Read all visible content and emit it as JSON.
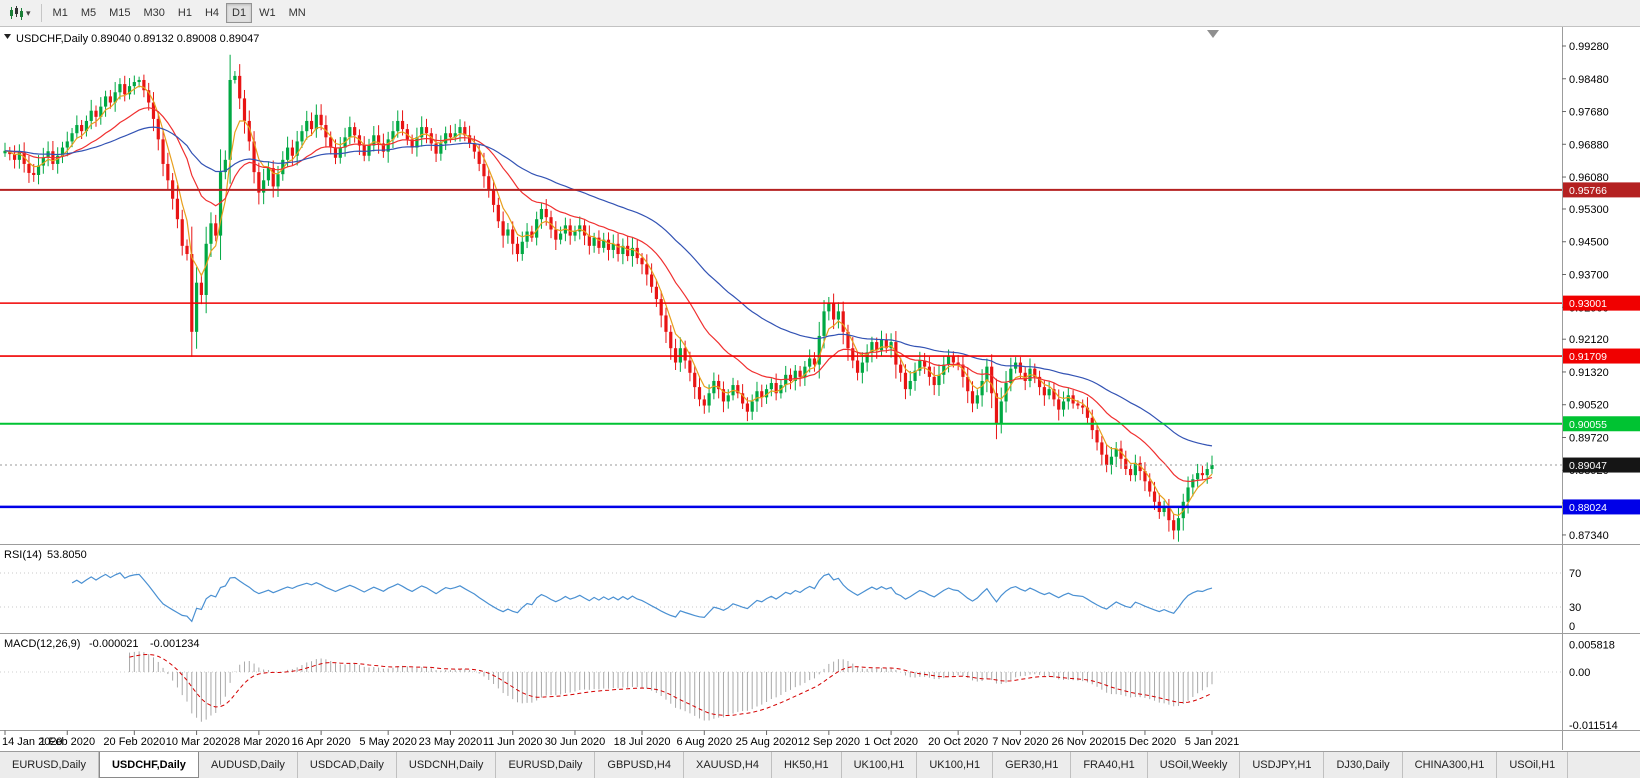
{
  "toolbar": {
    "chart_type_tooltip": "candlestick-chart",
    "timeframes": [
      {
        "label": "M1",
        "active": false
      },
      {
        "label": "M5",
        "active": false
      },
      {
        "label": "M15",
        "active": false
      },
      {
        "label": "M30",
        "active": false
      },
      {
        "label": "H1",
        "active": false
      },
      {
        "label": "H4",
        "active": false
      },
      {
        "label": "D1",
        "active": true
      },
      {
        "label": "W1",
        "active": false
      },
      {
        "label": "MN",
        "active": false
      }
    ]
  },
  "chart": {
    "symbol": "USDCHF",
    "period": "Daily",
    "title_line": "USDCHF,Daily  0.89040 0.89132 0.89008 0.89047",
    "ohlc": {
      "open": "0.89040",
      "high": "0.89132",
      "low": "0.89008",
      "close": "0.89047"
    }
  },
  "indicators": {
    "rsi": {
      "name": "RSI(14)",
      "value": "53.8050"
    },
    "macd": {
      "name": "MACD(12,26,9)",
      "value_main": "-0.000021",
      "value_signal": "-0.001234"
    }
  },
  "price_axis_labels": [
    {
      "label": "0.99280",
      "value": 0.9928
    },
    {
      "label": "0.98480",
      "value": 0.9848
    },
    {
      "label": "0.97680",
      "value": 0.9768
    },
    {
      "label": "0.96880",
      "value": 0.9688
    },
    {
      "label": "0.96080",
      "value": 0.9608
    },
    {
      "label": "0.95300",
      "value": 0.953
    },
    {
      "label": "0.94500",
      "value": 0.945
    },
    {
      "label": "0.93700",
      "value": 0.937
    },
    {
      "label": "0.92900",
      "value": 0.929
    },
    {
      "label": "0.92120",
      "value": 0.9212
    },
    {
      "label": "0.91320",
      "value": 0.9132
    },
    {
      "label": "0.90520",
      "value": 0.9052
    },
    {
      "label": "0.89720",
      "value": 0.8972
    },
    {
      "label": "0.88920",
      "value": 0.8892
    },
    {
      "label": "0.88120",
      "value": 0.8812
    },
    {
      "label": "0.87340",
      "value": 0.8734
    }
  ],
  "levels": [
    {
      "label": "0.95766",
      "price": 0.95766,
      "color": "#b42121",
      "width": 2
    },
    {
      "label": "0.93001",
      "price": 0.93001,
      "color": "#f00000",
      "width": 1.4
    },
    {
      "label": "0.91709",
      "price": 0.91709,
      "color": "#f00000",
      "width": 1.6
    },
    {
      "label": "0.90055",
      "price": 0.90055,
      "color": "#00c332",
      "width": 2
    },
    {
      "label": "0.88024",
      "price": 0.88024,
      "color": "#0000e8",
      "width": 2.5
    }
  ],
  "current_price": {
    "label": "0.89047",
    "price": 0.89047,
    "tag_color": "#151515"
  },
  "rsi_axis_labels": [
    {
      "label": "70",
      "value": 70
    },
    {
      "label": "30",
      "value": 30
    },
    {
      "label": "0",
      "value": 0
    }
  ],
  "macd_axis_labels": [
    {
      "label": "0.005818",
      "value": 0.005818
    },
    {
      "label": "0.00",
      "value": 0
    },
    {
      "label": "-0.011514",
      "value": -0.011514
    }
  ],
  "dates": [
    {
      "label": "14 Jan 2020",
      "index": 0
    },
    {
      "label": "1 Feb 2020",
      "index": 13
    },
    {
      "label": "20 Feb 2020",
      "index": 27
    },
    {
      "label": "10 Mar 2020",
      "index": 40
    },
    {
      "label": "28 Mar 2020",
      "index": 53
    },
    {
      "label": "16 Apr 2020",
      "index": 66
    },
    {
      "label": "5 May 2020",
      "index": 80
    },
    {
      "label": "23 May 2020",
      "index": 93
    },
    {
      "label": "11 Jun 2020",
      "index": 106
    },
    {
      "label": "30 Jun 2020",
      "index": 119
    },
    {
      "label": "18 Jul 2020",
      "index": 133
    },
    {
      "label": "6 Aug 2020",
      "index": 146
    },
    {
      "label": "25 Aug 2020",
      "index": 159
    },
    {
      "label": "12 Sep 2020",
      "index": 172
    },
    {
      "label": "1 Oct 2020",
      "index": 185
    },
    {
      "label": "20 Oct 2020",
      "index": 199
    },
    {
      "label": "7 Nov 2020",
      "index": 212
    },
    {
      "label": "26 Nov 2020",
      "index": 225
    },
    {
      "label": "15 Dec 2020",
      "index": 238
    },
    {
      "label": "5 Jan 2021",
      "index": 252
    }
  ],
  "tabs": [
    {
      "label": "EURUSD,Daily",
      "active": false
    },
    {
      "label": "USDCHF,Daily",
      "active": true
    },
    {
      "label": "AUDUSD,Daily",
      "active": false
    },
    {
      "label": "USDCAD,Daily",
      "active": false
    },
    {
      "label": "USDCNH,Daily",
      "active": false
    },
    {
      "label": "EURUSD,Daily",
      "active": false
    },
    {
      "label": "GBPUSD,H4",
      "active": false
    },
    {
      "label": "XAUUSD,H4",
      "active": false
    },
    {
      "label": "HK50,H1",
      "active": false
    },
    {
      "label": "UK100,H1",
      "active": false
    },
    {
      "label": "UK100,H1",
      "active": false
    },
    {
      "label": "GER30,H1",
      "active": false
    },
    {
      "label": "FRA40,H1",
      "active": false
    },
    {
      "label": "USOil,Weekly",
      "active": false
    },
    {
      "label": "USDJPY,H1",
      "active": false
    },
    {
      "label": "DJ30,Daily",
      "active": false
    },
    {
      "label": "CHINA300,H1",
      "active": false
    },
    {
      "label": "USOil,H1",
      "active": false
    }
  ],
  "chart_data": {
    "type": "candlestick",
    "symbol": "USDCHF",
    "timeframe": "Daily",
    "note": "open of each bar = close of previous bar; highs/lows estimated from chart",
    "price_range": {
      "axis_top": 0.9972,
      "axis_bottom": 0.8714
    },
    "closes": [
      0.9672,
      0.9664,
      0.965,
      0.9668,
      0.964,
      0.9618,
      0.9613,
      0.9636,
      0.9656,
      0.9671,
      0.964,
      0.966,
      0.968,
      0.9695,
      0.9715,
      0.9735,
      0.972,
      0.9745,
      0.977,
      0.9755,
      0.978,
      0.9805,
      0.979,
      0.9815,
      0.9835,
      0.981,
      0.983,
      0.984,
      0.9845,
      0.982,
      0.979,
      0.975,
      0.97,
      0.964,
      0.96,
      0.9555,
      0.9505,
      0.944,
      0.942,
      0.923,
      0.935,
      0.932,
      0.9445,
      0.9495,
      0.9465,
      0.962,
      0.965,
      0.9845,
      0.9855,
      0.98,
      0.9745,
      0.9695,
      0.962,
      0.957,
      0.96,
      0.963,
      0.9585,
      0.9615,
      0.965,
      0.968,
      0.966,
      0.9695,
      0.972,
      0.9745,
      0.9725,
      0.976,
      0.9735,
      0.9705,
      0.968,
      0.9655,
      0.968,
      0.9705,
      0.973,
      0.971,
      0.9685,
      0.966,
      0.9685,
      0.971,
      0.969,
      0.967,
      0.97,
      0.972,
      0.9745,
      0.9725,
      0.97,
      0.968,
      0.9705,
      0.973,
      0.9715,
      0.969,
      0.9665,
      0.969,
      0.9715,
      0.9705,
      0.9715,
      0.973,
      0.971,
      0.969,
      0.967,
      0.964,
      0.961,
      0.9575,
      0.954,
      0.95,
      0.9465,
      0.948,
      0.9445,
      0.942,
      0.945,
      0.9475,
      0.946,
      0.9505,
      0.953,
      0.951,
      0.948,
      0.9455,
      0.947,
      0.949,
      0.9465,
      0.9475,
      0.949,
      0.9465,
      0.944,
      0.946,
      0.9435,
      0.9455,
      0.943,
      0.9445,
      0.942,
      0.944,
      0.9415,
      0.9435,
      0.941,
      0.9395,
      0.937,
      0.934,
      0.931,
      0.927,
      0.923,
      0.919,
      0.9155,
      0.919,
      0.916,
      0.913,
      0.9095,
      0.9065,
      0.905,
      0.908,
      0.911,
      0.909,
      0.906,
      0.9075,
      0.91,
      0.908,
      0.9055,
      0.9035,
      0.906,
      0.9085,
      0.907,
      0.909,
      0.9105,
      0.908,
      0.91,
      0.9125,
      0.911,
      0.9135,
      0.912,
      0.9145,
      0.9165,
      0.915,
      0.922,
      0.928,
      0.93,
      0.926,
      0.928,
      0.923,
      0.919,
      0.916,
      0.913,
      0.9155,
      0.918,
      0.9205,
      0.9185,
      0.921,
      0.919,
      0.9205,
      0.915,
      0.913,
      0.909,
      0.911,
      0.9135,
      0.916,
      0.9145,
      0.912,
      0.91,
      0.9125,
      0.915,
      0.917,
      0.9155,
      0.915,
      0.912,
      0.9085,
      0.9055,
      0.9075,
      0.911,
      0.9145,
      0.908,
      0.9005,
      0.906,
      0.9105,
      0.914,
      0.9155,
      0.913,
      0.911,
      0.914,
      0.912,
      0.9095,
      0.9075,
      0.909,
      0.9065,
      0.904,
      0.906,
      0.9075,
      0.9055,
      0.905,
      0.9045,
      0.902,
      0.899,
      0.896,
      0.893,
      0.8905,
      0.8925,
      0.8945,
      0.892,
      0.8895,
      0.888,
      0.891,
      0.889,
      0.8865,
      0.884,
      0.8815,
      0.879,
      0.88,
      0.877,
      0.8745,
      0.8775,
      0.8815,
      0.885,
      0.887,
      0.8885,
      0.888,
      0.8895,
      0.89047
    ],
    "moving_averages": [
      {
        "period": 5,
        "color": "#e8a01e"
      },
      {
        "period": 20,
        "color": "#f03030"
      },
      {
        "period": 50,
        "color": "#3353b4"
      }
    ],
    "rsi": {
      "period": 14,
      "levels": [
        70,
        30
      ],
      "color": "#4a90d2",
      "last_value": 53.805
    },
    "macd": {
      "fast": 12,
      "slow": 26,
      "signal": 9,
      "hist_color": "#a9a9a9",
      "signal_color": "#d40000",
      "last_main": -2.1e-05,
      "last_signal": -0.001234
    },
    "colors": {
      "up": "#00a843",
      "down": "#e81414",
      "background": "#ffffff"
    },
    "grid": false,
    "legend_position": "top-left"
  }
}
